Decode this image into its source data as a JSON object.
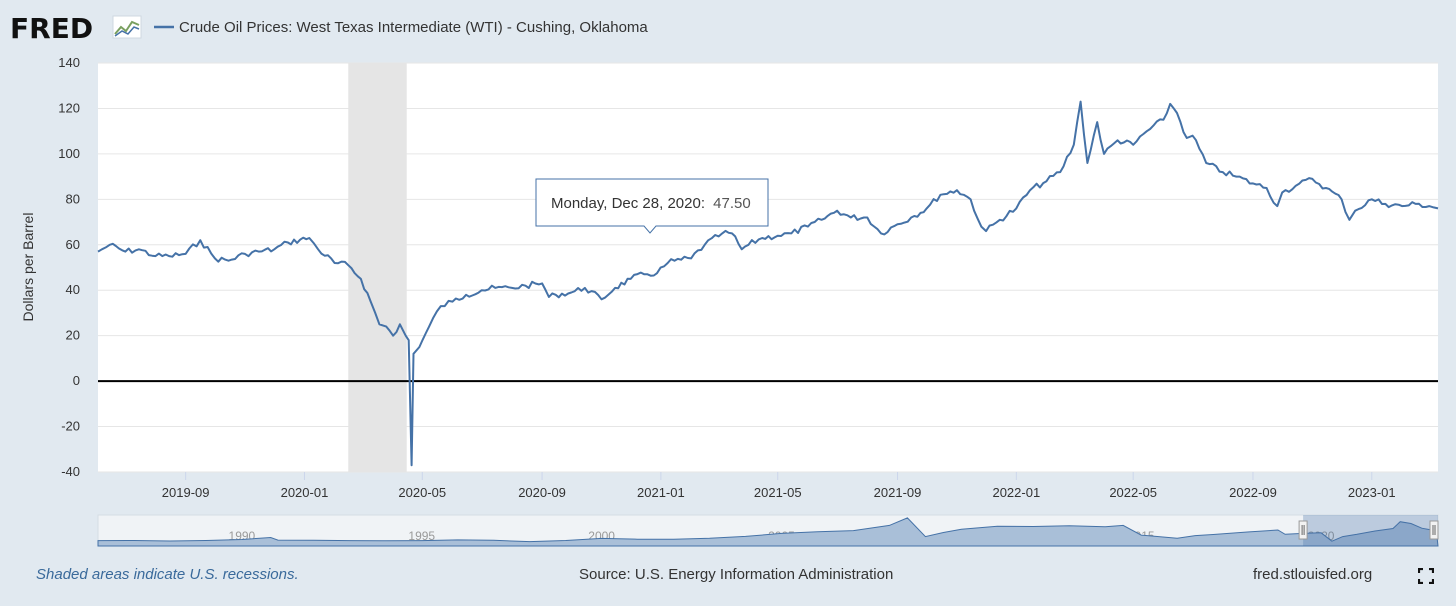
{
  "header": {
    "logo_text": "FRED",
    "series_title": "Crude Oil Prices: West Texas Intermediate (WTI) - Cushing, Oklahoma"
  },
  "tooltip": {
    "date_label": "Monday, Dec 28, 2020:",
    "value_label": "47.50"
  },
  "footer": {
    "recession_note": "Shaded areas indicate U.S. recessions.",
    "source": "Source: U.S. Energy Information Administration",
    "url": "fred.stlouisfed.org"
  },
  "navigator": {
    "year_labels": [
      "1990",
      "1995",
      "2000",
      "2005",
      "2010",
      "2015",
      "2020"
    ],
    "profile": [
      [
        1986,
        18
      ],
      [
        1987,
        19
      ],
      [
        1988,
        16
      ],
      [
        1989,
        19
      ],
      [
        1990,
        24
      ],
      [
        1990.8,
        35
      ],
      [
        1991,
        21
      ],
      [
        1992,
        20
      ],
      [
        1993,
        18
      ],
      [
        1994,
        17
      ],
      [
        1995,
        18
      ],
      [
        1996,
        22
      ],
      [
        1997,
        20
      ],
      [
        1998,
        13
      ],
      [
        1999,
        19
      ],
      [
        2000,
        30
      ],
      [
        2001,
        26
      ],
      [
        2002,
        26
      ],
      [
        2003,
        31
      ],
      [
        2004,
        41
      ],
      [
        2005,
        57
      ],
      [
        2006,
        66
      ],
      [
        2007,
        72
      ],
      [
        2008,
        100
      ],
      [
        2008.5,
        140
      ],
      [
        2009,
        40
      ],
      [
        2009.5,
        62
      ],
      [
        2010,
        79
      ],
      [
        2011,
        95
      ],
      [
        2012,
        94
      ],
      [
        2013,
        98
      ],
      [
        2014,
        93
      ],
      [
        2014.5,
        100
      ],
      [
        2015,
        48
      ],
      [
        2016,
        31
      ],
      [
        2016.5,
        45
      ],
      [
        2017,
        51
      ],
      [
        2018,
        65
      ],
      [
        2018.8,
        75
      ],
      [
        2019,
        52
      ],
      [
        2019.5,
        57
      ],
      [
        2020,
        60
      ],
      [
        2020.3,
        15
      ],
      [
        2020.6,
        40
      ],
      [
        2021,
        52
      ],
      [
        2021.5,
        70
      ],
      [
        2022,
        83
      ],
      [
        2022.2,
        120
      ],
      [
        2022.5,
        110
      ],
      [
        2022.8,
        85
      ],
      [
        2023,
        78
      ],
      [
        2023.2,
        75
      ]
    ],
    "range": [
      1986,
      2023.25
    ],
    "selected": [
      2019.5,
      2023.25
    ]
  },
  "chart_data": {
    "type": "line",
    "title": "Crude Oil Prices: West Texas Intermediate (WTI) - Cushing, Oklahoma",
    "xlabel": "",
    "ylabel": "Dollars per Barrel",
    "ylim": [
      -40,
      140
    ],
    "yticks": [
      -40,
      -20,
      0,
      20,
      40,
      60,
      80,
      100,
      120,
      140
    ],
    "xrange": [
      "2019-06-03",
      "2023-03-10"
    ],
    "xticks": [
      "2019-09",
      "2020-01",
      "2020-05",
      "2020-09",
      "2021-01",
      "2021-05",
      "2021-09",
      "2022-01",
      "2022-05",
      "2022-09",
      "2023-01"
    ],
    "recessions": [
      [
        "2020-02-15",
        "2020-04-15"
      ]
    ],
    "zero_line": 0,
    "highlight": {
      "date": "2020-12-28",
      "value": 47.5
    },
    "series": [
      {
        "name": "Crude Oil Prices: West Texas Intermediate (WTI) - Cushing, Oklahoma",
        "color": "#4572a7",
        "points": [
          [
            "2019-06-03",
            57
          ],
          [
            "2019-06-15",
            60
          ],
          [
            "2019-07-01",
            57
          ],
          [
            "2019-07-15",
            58
          ],
          [
            "2019-08-01",
            55
          ],
          [
            "2019-08-15",
            55
          ],
          [
            "2019-09-01",
            56
          ],
          [
            "2019-09-16",
            62
          ],
          [
            "2019-10-01",
            54
          ],
          [
            "2019-10-15",
            53
          ],
          [
            "2019-11-01",
            56
          ],
          [
            "2019-11-15",
            57
          ],
          [
            "2019-12-01",
            58
          ],
          [
            "2019-12-15",
            61
          ],
          [
            "2020-01-06",
            63
          ],
          [
            "2020-01-15",
            58
          ],
          [
            "2020-02-01",
            52
          ],
          [
            "2020-02-15",
            51
          ],
          [
            "2020-02-28",
            45
          ],
          [
            "2020-03-09",
            35
          ],
          [
            "2020-03-18",
            25
          ],
          [
            "2020-03-25",
            24
          ],
          [
            "2020-04-01",
            20
          ],
          [
            "2020-04-08",
            25
          ],
          [
            "2020-04-14",
            20
          ],
          [
            "2020-04-17",
            18
          ],
          [
            "2020-04-20",
            -37
          ],
          [
            "2020-04-22",
            12
          ],
          [
            "2020-04-28",
            15
          ],
          [
            "2020-05-08",
            24
          ],
          [
            "2020-05-20",
            33
          ],
          [
            "2020-06-01",
            35
          ],
          [
            "2020-06-15",
            38
          ],
          [
            "2020-07-01",
            40
          ],
          [
            "2020-07-15",
            41
          ],
          [
            "2020-08-01",
            41
          ],
          [
            "2020-08-15",
            42
          ],
          [
            "2020-09-01",
            43
          ],
          [
            "2020-09-08",
            37
          ],
          [
            "2020-09-15",
            38
          ],
          [
            "2020-10-01",
            39
          ],
          [
            "2020-10-15",
            41
          ],
          [
            "2020-11-01",
            36
          ],
          [
            "2020-11-15",
            41
          ],
          [
            "2020-12-01",
            45
          ],
          [
            "2020-12-15",
            47
          ],
          [
            "2020-12-28",
            47.5
          ],
          [
            "2021-01-08",
            52
          ],
          [
            "2021-01-15",
            53
          ],
          [
            "2021-02-01",
            54
          ],
          [
            "2021-02-15",
            60
          ],
          [
            "2021-03-05",
            65
          ],
          [
            "2021-03-15",
            65
          ],
          [
            "2021-03-25",
            58
          ],
          [
            "2021-04-01",
            60
          ],
          [
            "2021-04-15",
            63
          ],
          [
            "2021-05-01",
            64
          ],
          [
            "2021-05-15",
            65
          ],
          [
            "2021-06-01",
            68
          ],
          [
            "2021-06-15",
            71
          ],
          [
            "2021-07-01",
            75
          ],
          [
            "2021-07-15",
            72
          ],
          [
            "2021-08-01",
            72
          ],
          [
            "2021-08-15",
            65
          ],
          [
            "2021-09-01",
            69
          ],
          [
            "2021-09-15",
            72
          ],
          [
            "2021-10-01",
            76
          ],
          [
            "2021-10-15",
            82
          ],
          [
            "2021-11-01",
            84
          ],
          [
            "2021-11-15",
            80
          ],
          [
            "2021-11-26",
            68
          ],
          [
            "2021-12-01",
            66
          ],
          [
            "2021-12-15",
            71
          ],
          [
            "2022-01-01",
            76
          ],
          [
            "2022-01-15",
            84
          ],
          [
            "2022-02-01",
            88
          ],
          [
            "2022-02-15",
            92
          ],
          [
            "2022-03-01",
            104
          ],
          [
            "2022-03-08",
            123
          ],
          [
            "2022-03-15",
            96
          ],
          [
            "2022-03-25",
            114
          ],
          [
            "2022-04-01",
            100
          ],
          [
            "2022-04-15",
            106
          ],
          [
            "2022-05-01",
            104
          ],
          [
            "2022-05-15",
            110
          ],
          [
            "2022-06-01",
            115
          ],
          [
            "2022-06-08",
            122
          ],
          [
            "2022-06-15",
            118
          ],
          [
            "2022-06-25",
            107
          ],
          [
            "2022-07-01",
            108
          ],
          [
            "2022-07-15",
            96
          ],
          [
            "2022-08-01",
            92
          ],
          [
            "2022-08-15",
            90
          ],
          [
            "2022-09-01",
            87
          ],
          [
            "2022-09-15",
            85
          ],
          [
            "2022-09-26",
            77
          ],
          [
            "2022-10-01",
            83
          ],
          [
            "2022-10-15",
            86
          ],
          [
            "2022-11-01",
            89
          ],
          [
            "2022-11-15",
            85
          ],
          [
            "2022-12-01",
            80
          ],
          [
            "2022-12-09",
            71
          ],
          [
            "2022-12-15",
            75
          ],
          [
            "2023-01-01",
            80
          ],
          [
            "2023-01-15",
            78
          ],
          [
            "2023-02-01",
            77
          ],
          [
            "2023-02-15",
            78
          ],
          [
            "2023-03-01",
            77
          ],
          [
            "2023-03-10",
            76
          ]
        ]
      }
    ]
  }
}
